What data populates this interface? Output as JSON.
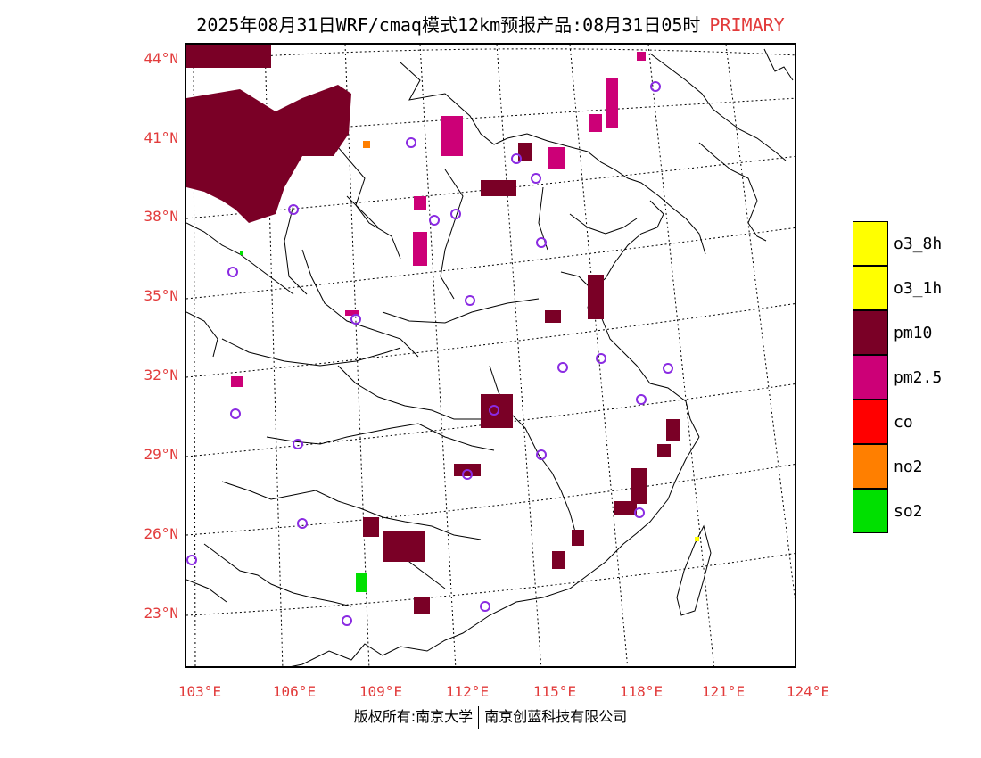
{
  "title": {
    "main": "2025年08月31日WRF/cmaq模式12km预报产品:08月31日05时",
    "tag": "PRIMARY"
  },
  "axes": {
    "lat_labels": [
      "44°N",
      "41°N",
      "38°N",
      "35°N",
      "32°N",
      "29°N",
      "26°N",
      "23°N"
    ],
    "lon_labels": [
      "103°E",
      "106°E",
      "109°E",
      "112°E",
      "115°E",
      "118°E",
      "121°E",
      "124°E"
    ]
  },
  "legend": [
    {
      "label": "o3_8h",
      "color": "#ffff00"
    },
    {
      "label": "o3_1h",
      "color": "#ffff00"
    },
    {
      "label": "pm10",
      "color": "#7a0026"
    },
    {
      "label": "pm2.5",
      "color": "#cc0077"
    },
    {
      "label": "co",
      "color": "#ff0000"
    },
    {
      "label": "no2",
      "color": "#ff7f00"
    },
    {
      "label": "so2",
      "color": "#00e000"
    }
  ],
  "colors": {
    "pm10": "#7a0026",
    "pm25": "#cc0077",
    "no2": "#ff7f00",
    "so2": "#00e000",
    "o3": "#ffff00",
    "station": "#8a2be2",
    "axis_label": "#e23b3b"
  },
  "copyright": {
    "left": "版权所有:南京大学",
    "right": "南京创蓝科技有限公司"
  }
}
